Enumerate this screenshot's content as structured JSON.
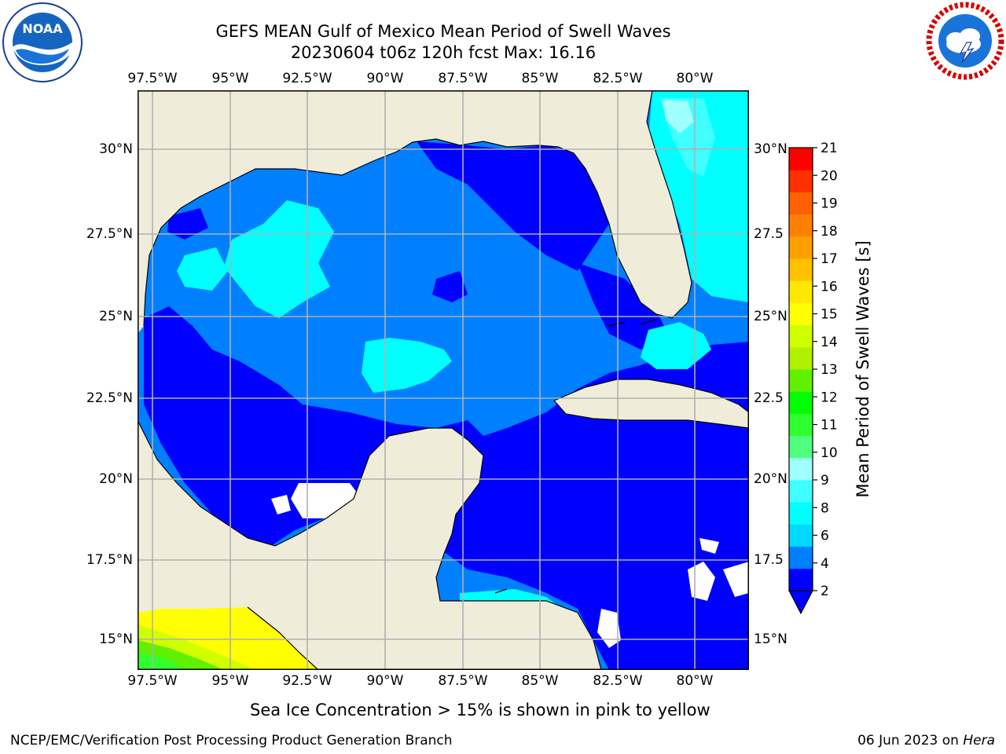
{
  "header": {
    "title_line1": "GEFS MEAN Gulf of Mexico Mean Period of Swell Waves",
    "title_line2": "20230604 t06z 120h fcst   Max: 16.16"
  },
  "logos": {
    "noaa": {
      "label": "NOAA",
      "icon": "noaa-logo"
    },
    "nws": {
      "icon": "nws-logo"
    }
  },
  "map": {
    "lon_labels": [
      "97.5°W",
      "95°W",
      "92.5°W",
      "90°W",
      "87.5°W",
      "85°W",
      "82.5°W",
      "80°W"
    ],
    "lat_labels_left": [
      "30°N",
      "27.5°N",
      "25°N",
      "22.5°N",
      "20°N",
      "17.5°N",
      "15°N"
    ],
    "lat_labels_right": [
      "30°N",
      "27.5",
      "25°N",
      "22.5",
      "20°N",
      "17.5",
      "15°N"
    ],
    "colors": {
      "land": "#efedda",
      "gridline": "#b0b0b0",
      "coast": "#000000"
    }
  },
  "colorbar": {
    "title": "Mean Period of Swell Waves [s]",
    "ticks": [
      "21",
      "20",
      "19",
      "18",
      "17",
      "16",
      "15",
      "14",
      "13",
      "12",
      "11",
      "10",
      "9",
      "8",
      "6",
      "4",
      "2"
    ],
    "colors": [
      "#0000ff",
      "#0080ff",
      "#00d8ff",
      "#00ffff",
      "#40ffff",
      "#a0ffff",
      "#50ff80",
      "#30ff30",
      "#00ff00",
      "#60f000",
      "#b0f000",
      "#d0ff00",
      "#ffff00",
      "#ffe800",
      "#ffc000",
      "#ffa000",
      "#ff8000",
      "#ff6000",
      "#ff3000",
      "#ff0000"
    ]
  },
  "footer": {
    "note": "Sea Ice Concentration > 15% is shown in pink to yellow",
    "credit": "NCEP/EMC/Verification Post Processing Product Generation Branch",
    "date": "06 Jun 2023 on",
    "host": "Hera"
  }
}
